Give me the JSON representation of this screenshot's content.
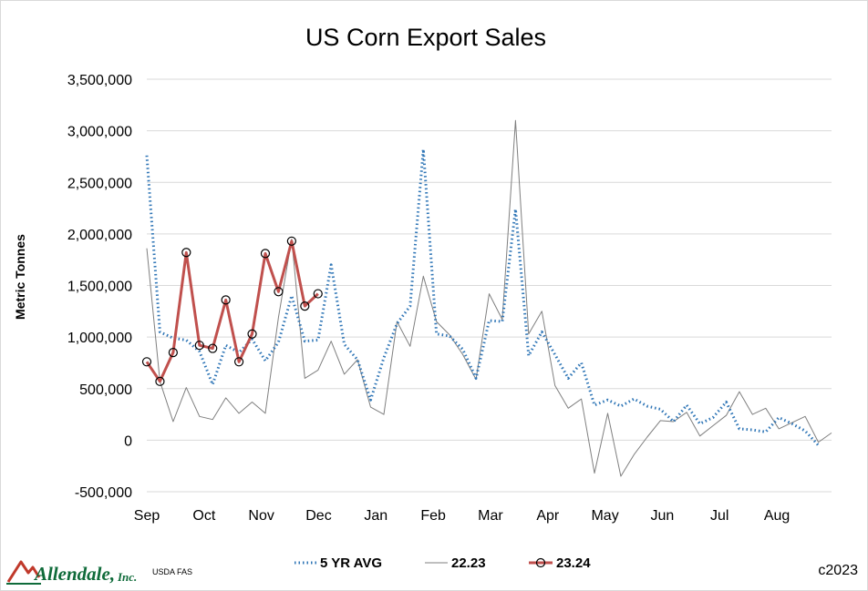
{
  "chart_data": {
    "type": "line",
    "title": "US Corn Export Sales",
    "ylabel": "Metric Tonnes",
    "xlabel": "",
    "ylim": [
      -500000,
      3500000
    ],
    "yticks": [
      3500000,
      3000000,
      2500000,
      2000000,
      1500000,
      1000000,
      500000,
      0,
      -500000
    ],
    "ytick_labels": [
      "3,500,000",
      "3,000,000",
      "2,500,000",
      "2,000,000",
      "1,500,000",
      "1,000,000",
      "500,000",
      "0",
      "-500,000"
    ],
    "x_week_count": 53,
    "month_labels": [
      {
        "label": "Sep",
        "week": 0
      },
      {
        "label": "Oct",
        "week": 4.35
      },
      {
        "label": "Nov",
        "week": 8.7
      },
      {
        "label": "Dec",
        "week": 13.05
      },
      {
        "label": "Jan",
        "week": 17.4
      },
      {
        "label": "Feb",
        "week": 21.75
      },
      {
        "label": "Mar",
        "week": 26.1
      },
      {
        "label": "Apr",
        "week": 30.45
      },
      {
        "label": "May",
        "week": 34.8
      },
      {
        "label": "Jun",
        "week": 39.15
      },
      {
        "label": "Jul",
        "week": 43.5
      },
      {
        "label": "Aug",
        "week": 47.85
      }
    ],
    "grid": true,
    "legend_position": "bottom",
    "series": [
      {
        "name": "5 YR AVG",
        "style": "dotted",
        "color": "#2e75b6",
        "values": [
          2760000,
          1050000,
          990000,
          970000,
          860000,
          540000,
          920000,
          850000,
          980000,
          770000,
          950000,
          1400000,
          960000,
          970000,
          1700000,
          930000,
          780000,
          390000,
          800000,
          1130000,
          1300000,
          2820000,
          1030000,
          1010000,
          880000,
          600000,
          1160000,
          1150000,
          2240000,
          820000,
          1050000,
          830000,
          600000,
          750000,
          340000,
          390000,
          330000,
          400000,
          330000,
          300000,
          180000,
          340000,
          160000,
          220000,
          370000,
          110000,
          100000,
          80000,
          220000,
          160000,
          90000,
          -50000
        ]
      },
      {
        "name": "22.23",
        "style": "solid",
        "color": "#7f7f7f",
        "values": [
          1860000,
          570000,
          180000,
          510000,
          230000,
          200000,
          410000,
          260000,
          370000,
          260000,
          1190000,
          1950000,
          600000,
          680000,
          960000,
          640000,
          780000,
          320000,
          250000,
          1150000,
          910000,
          1590000,
          1150000,
          1020000,
          830000,
          590000,
          1420000,
          1170000,
          3100000,
          1030000,
          1250000,
          530000,
          310000,
          400000,
          -320000,
          260000,
          -350000,
          -140000,
          30000,
          190000,
          180000,
          270000,
          40000,
          140000,
          240000,
          470000,
          250000,
          310000,
          110000,
          170000,
          230000,
          -20000,
          70000
        ]
      },
      {
        "name": "23.24",
        "style": "solid-marker",
        "color": "#c0504d",
        "values": [
          760000,
          570000,
          850000,
          1820000,
          920000,
          890000,
          1360000,
          760000,
          1030000,
          1810000,
          1440000,
          1930000,
          1300000,
          1420000
        ]
      }
    ]
  },
  "footer": {
    "source": "USDA FAS",
    "copyright": "c2023",
    "logo_name": "Allendale,",
    "logo_suffix": "Inc."
  }
}
